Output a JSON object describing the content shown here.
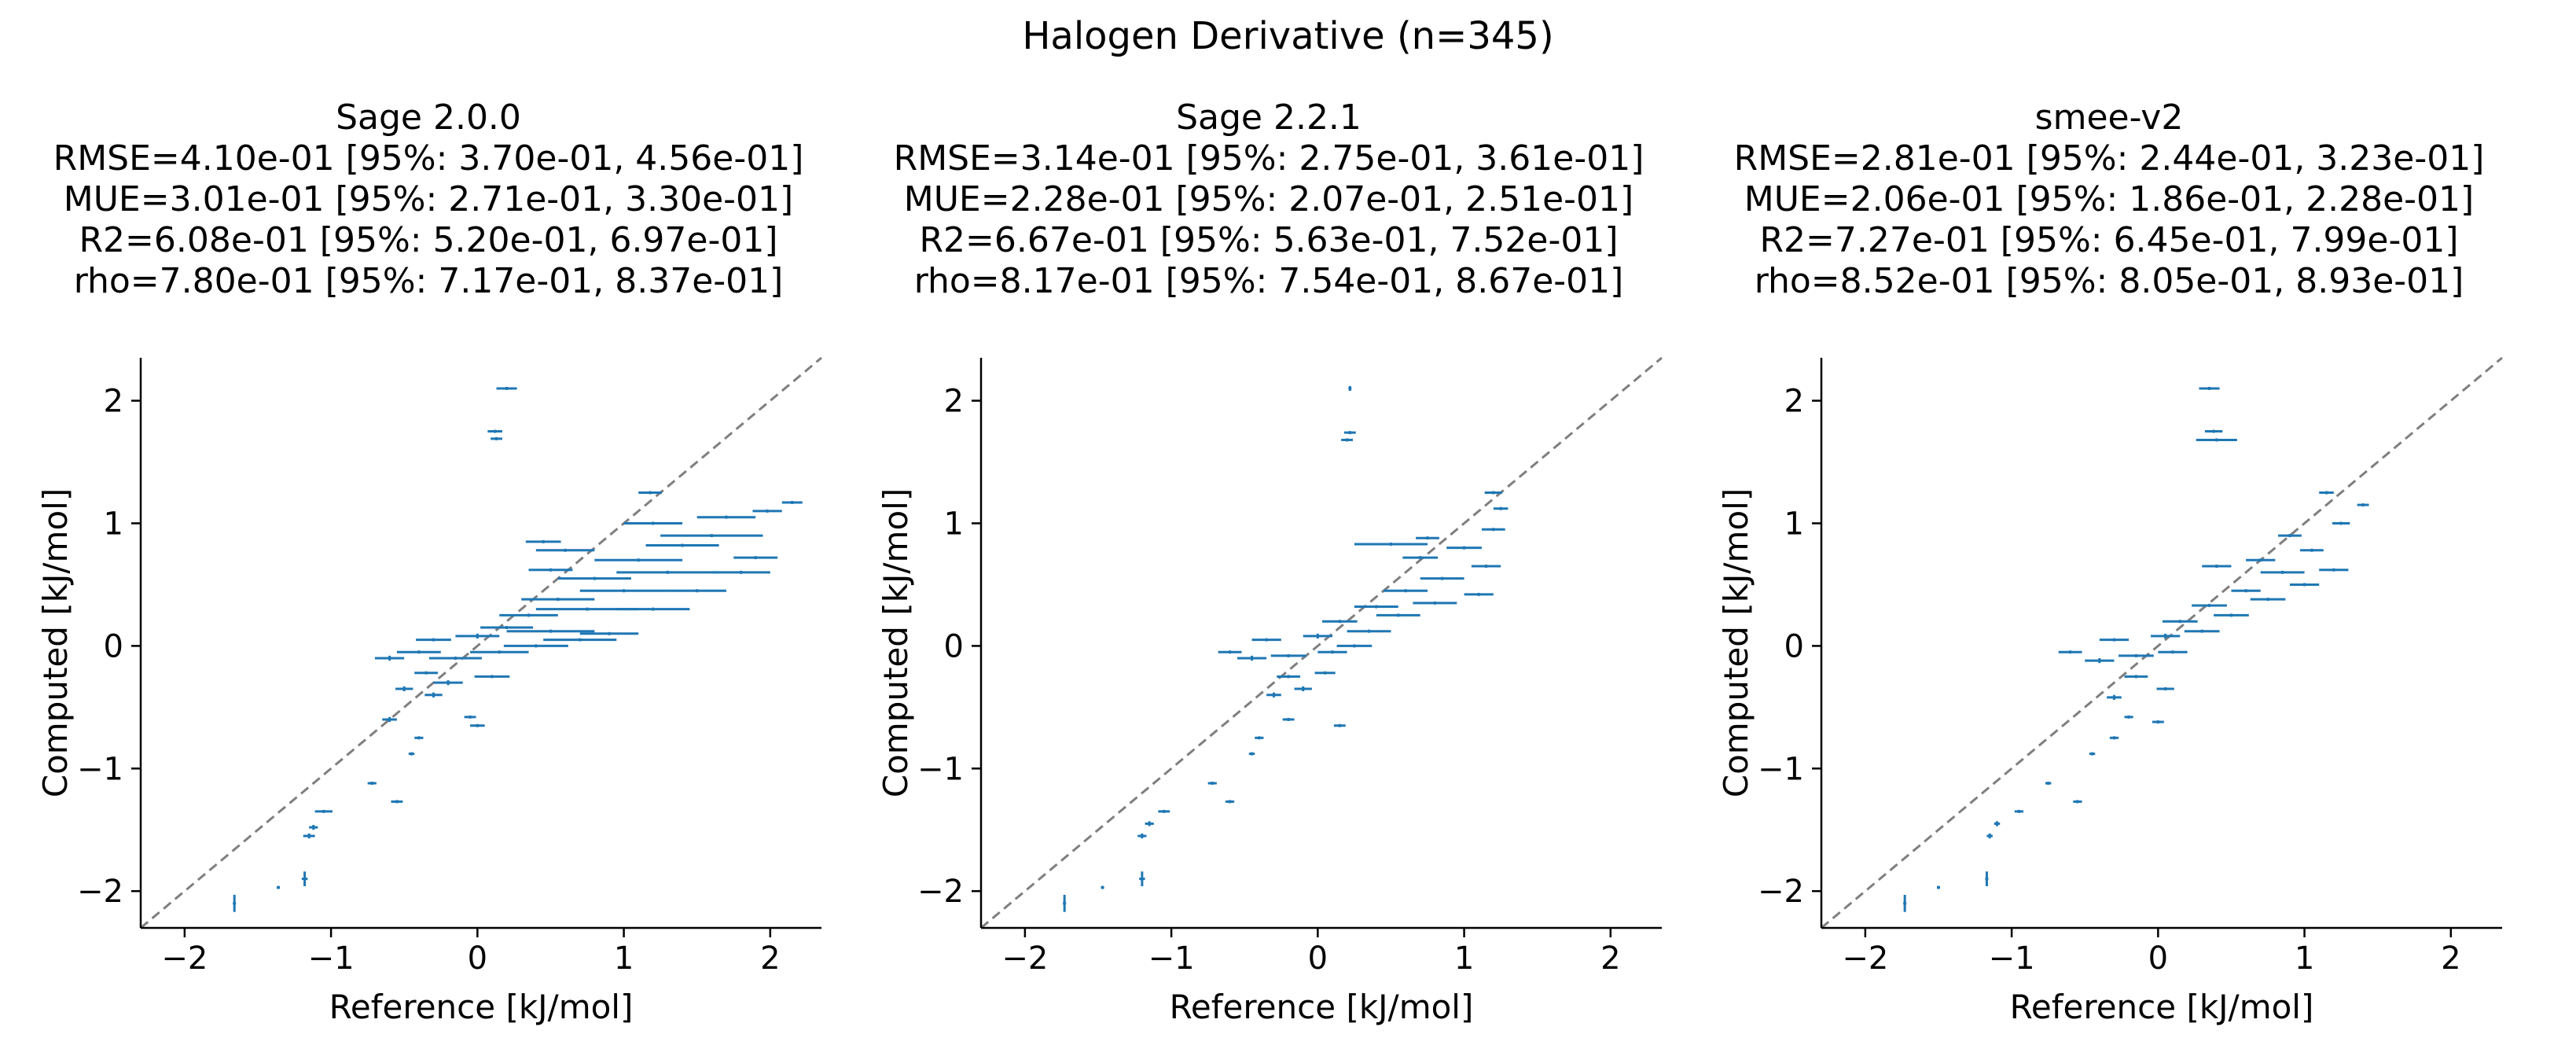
{
  "figure": {
    "suptitle": "Halogen Derivative (n=345)"
  },
  "chart_data": [
    {
      "type": "scatter",
      "title": "Sage 2.0.0",
      "stats": [
        "RMSE=4.10e-01 [95%: 3.70e-01, 4.56e-01]",
        "MUE=3.01e-01 [95%: 2.71e-01, 3.30e-01]",
        "R2=6.08e-01 [95%: 5.20e-01, 6.97e-01]",
        "rho=7.80e-01 [95%: 7.17e-01, 8.37e-01]"
      ],
      "xlabel": "Reference [kJ/mol]",
      "ylabel": "Computed [kJ/mol]",
      "xlim": [
        -2.3,
        2.35
      ],
      "ylim": [
        -2.3,
        2.35
      ],
      "xticks": [
        -2,
        -1,
        0,
        1,
        2
      ],
      "yticks": [
        -2,
        -1,
        0,
        1,
        2
      ],
      "xticklabels": [
        "−2",
        "−1",
        "0",
        "1",
        "2"
      ],
      "yticklabels": [
        "−2",
        "−1",
        "0",
        "1",
        "2"
      ],
      "grid": false,
      "diagonal": true,
      "colors": {
        "points": "#1f77b4",
        "diagonal": "#7f7f7f"
      },
      "points": [
        {
          "x": -1.66,
          "y": -2.1,
          "xerr": 0.01,
          "yerr": 0.07
        },
        {
          "x": -1.36,
          "y": -1.97,
          "xerr": 0.01,
          "yerr": 0.01
        },
        {
          "x": -1.18,
          "y": -1.9,
          "xerr": 0.02,
          "yerr": 0.06
        },
        {
          "x": -1.15,
          "y": -1.55,
          "xerr": 0.04,
          "yerr": 0.02
        },
        {
          "x": -1.12,
          "y": -1.48,
          "xerr": 0.03,
          "yerr": 0.02
        },
        {
          "x": -1.05,
          "y": -1.35,
          "xerr": 0.06,
          "yerr": 0.01
        },
        {
          "x": -0.55,
          "y": -1.27,
          "xerr": 0.04,
          "yerr": 0.01
        },
        {
          "x": -0.72,
          "y": -1.12,
          "xerr": 0.03,
          "yerr": 0.01
        },
        {
          "x": -0.45,
          "y": -0.88,
          "xerr": 0.02,
          "yerr": 0.01
        },
        {
          "x": -0.4,
          "y": -0.75,
          "xerr": 0.03,
          "yerr": 0.01
        },
        {
          "x": -0.6,
          "y": -0.6,
          "xerr": 0.05,
          "yerr": 0.02
        },
        {
          "x": 0.0,
          "y": -0.65,
          "xerr": 0.05,
          "yerr": 0.01
        },
        {
          "x": -0.05,
          "y": -0.58,
          "xerr": 0.04,
          "yerr": 0.01
        },
        {
          "x": -0.3,
          "y": -0.4,
          "xerr": 0.06,
          "yerr": 0.02
        },
        {
          "x": -0.5,
          "y": -0.35,
          "xerr": 0.06,
          "yerr": 0.02
        },
        {
          "x": -0.2,
          "y": -0.3,
          "xerr": 0.1,
          "yerr": 0.02
        },
        {
          "x": -0.35,
          "y": -0.22,
          "xerr": 0.08,
          "yerr": 0.01
        },
        {
          "x": 0.1,
          "y": -0.25,
          "xerr": 0.12,
          "yerr": 0.01
        },
        {
          "x": -0.6,
          "y": -0.1,
          "xerr": 0.1,
          "yerr": 0.02
        },
        {
          "x": -0.4,
          "y": -0.05,
          "xerr": 0.15,
          "yerr": 0.01
        },
        {
          "x": -0.15,
          "y": -0.1,
          "xerr": 0.18,
          "yerr": 0.01
        },
        {
          "x": 0.15,
          "y": -0.05,
          "xerr": 0.2,
          "yerr": 0.01
        },
        {
          "x": 0.4,
          "y": 0.0,
          "xerr": 0.22,
          "yerr": 0.01
        },
        {
          "x": 0.7,
          "y": 0.05,
          "xerr": 0.25,
          "yerr": 0.01
        },
        {
          "x": -0.3,
          "y": 0.05,
          "xerr": 0.12,
          "yerr": 0.01
        },
        {
          "x": 0.0,
          "y": 0.08,
          "xerr": 0.15,
          "yerr": 0.02
        },
        {
          "x": 0.5,
          "y": 0.12,
          "xerr": 0.3,
          "yerr": 0.01
        },
        {
          "x": 0.9,
          "y": 0.1,
          "xerr": 0.2,
          "yerr": 0.01
        },
        {
          "x": 0.2,
          "y": 0.15,
          "xerr": 0.18,
          "yerr": 0.01
        },
        {
          "x": 0.35,
          "y": 0.25,
          "xerr": 0.2,
          "yerr": 0.01
        },
        {
          "x": 0.75,
          "y": 0.3,
          "xerr": 0.35,
          "yerr": 0.01
        },
        {
          "x": 1.2,
          "y": 0.3,
          "xerr": 0.25,
          "yerr": 0.01
        },
        {
          "x": 0.55,
          "y": 0.38,
          "xerr": 0.25,
          "yerr": 0.01
        },
        {
          "x": 1.0,
          "y": 0.45,
          "xerr": 0.3,
          "yerr": 0.01
        },
        {
          "x": 1.5,
          "y": 0.45,
          "xerr": 0.2,
          "yerr": 0.01
        },
        {
          "x": 0.8,
          "y": 0.55,
          "xerr": 0.25,
          "yerr": 0.01
        },
        {
          "x": 1.3,
          "y": 0.6,
          "xerr": 0.35,
          "yerr": 0.01
        },
        {
          "x": 1.8,
          "y": 0.6,
          "xerr": 0.2,
          "yerr": 0.01
        },
        {
          "x": 0.5,
          "y": 0.62,
          "xerr": 0.15,
          "yerr": 0.01
        },
        {
          "x": 1.1,
          "y": 0.7,
          "xerr": 0.3,
          "yerr": 0.01
        },
        {
          "x": 1.9,
          "y": 0.72,
          "xerr": 0.15,
          "yerr": 0.01
        },
        {
          "x": 0.6,
          "y": 0.78,
          "xerr": 0.2,
          "yerr": 0.01
        },
        {
          "x": 1.4,
          "y": 0.82,
          "xerr": 0.25,
          "yerr": 0.01
        },
        {
          "x": 0.45,
          "y": 0.85,
          "xerr": 0.12,
          "yerr": 0.01
        },
        {
          "x": 1.6,
          "y": 0.9,
          "xerr": 0.35,
          "yerr": 0.01
        },
        {
          "x": 1.2,
          "y": 1.0,
          "xerr": 0.2,
          "yerr": 0.01
        },
        {
          "x": 1.7,
          "y": 1.05,
          "xerr": 0.2,
          "yerr": 0.01
        },
        {
          "x": 1.98,
          "y": 1.1,
          "xerr": 0.1,
          "yerr": 0.01
        },
        {
          "x": 2.15,
          "y": 1.17,
          "xerr": 0.07,
          "yerr": 0.01
        },
        {
          "x": 1.18,
          "y": 1.25,
          "xerr": 0.08,
          "yerr": 0.01
        },
        {
          "x": 0.2,
          "y": 2.1,
          "xerr": 0.07,
          "yerr": 0.01
        },
        {
          "x": 0.12,
          "y": 1.75,
          "xerr": 0.05,
          "yerr": 0.01
        },
        {
          "x": 0.13,
          "y": 1.69,
          "xerr": 0.04,
          "yerr": 0.01
        }
      ]
    },
    {
      "type": "scatter",
      "title": "Sage 2.2.1",
      "stats": [
        "RMSE=3.14e-01 [95%: 2.75e-01, 3.61e-01]",
        "MUE=2.28e-01 [95%: 2.07e-01, 2.51e-01]",
        "R2=6.67e-01 [95%: 5.63e-01, 7.52e-01]",
        "rho=8.17e-01 [95%: 7.54e-01, 8.67e-01]"
      ],
      "xlabel": "Reference [kJ/mol]",
      "ylabel": "Computed [kJ/mol]",
      "xlim": [
        -2.3,
        2.35
      ],
      "ylim": [
        -2.3,
        2.35
      ],
      "xticks": [
        -2,
        -1,
        0,
        1,
        2
      ],
      "yticks": [
        -2,
        -1,
        0,
        1,
        2
      ],
      "xticklabels": [
        "−2",
        "−1",
        "0",
        "1",
        "2"
      ],
      "yticklabels": [
        "−2",
        "−1",
        "0",
        "1",
        "2"
      ],
      "grid": false,
      "diagonal": true,
      "colors": {
        "points": "#1f77b4",
        "diagonal": "#7f7f7f"
      },
      "points": [
        {
          "x": -1.73,
          "y": -2.1,
          "xerr": 0.01,
          "yerr": 0.07
        },
        {
          "x": -1.47,
          "y": -1.97,
          "xerr": 0.01,
          "yerr": 0.01
        },
        {
          "x": -1.2,
          "y": -1.9,
          "xerr": 0.02,
          "yerr": 0.06
        },
        {
          "x": -1.2,
          "y": -1.55,
          "xerr": 0.03,
          "yerr": 0.02
        },
        {
          "x": -1.15,
          "y": -1.45,
          "xerr": 0.03,
          "yerr": 0.02
        },
        {
          "x": -1.05,
          "y": -1.35,
          "xerr": 0.04,
          "yerr": 0.01
        },
        {
          "x": -0.6,
          "y": -1.27,
          "xerr": 0.03,
          "yerr": 0.01
        },
        {
          "x": -0.72,
          "y": -1.12,
          "xerr": 0.03,
          "yerr": 0.01
        },
        {
          "x": -0.45,
          "y": -0.88,
          "xerr": 0.02,
          "yerr": 0.01
        },
        {
          "x": -0.4,
          "y": -0.75,
          "xerr": 0.03,
          "yerr": 0.01
        },
        {
          "x": -0.2,
          "y": -0.6,
          "xerr": 0.04,
          "yerr": 0.01
        },
        {
          "x": 0.15,
          "y": -0.65,
          "xerr": 0.04,
          "yerr": 0.01
        },
        {
          "x": -0.3,
          "y": -0.4,
          "xerr": 0.05,
          "yerr": 0.02
        },
        {
          "x": -0.1,
          "y": -0.35,
          "xerr": 0.06,
          "yerr": 0.02
        },
        {
          "x": -0.2,
          "y": -0.25,
          "xerr": 0.08,
          "yerr": 0.01
        },
        {
          "x": 0.05,
          "y": -0.22,
          "xerr": 0.07,
          "yerr": 0.01
        },
        {
          "x": -0.45,
          "y": -0.1,
          "xerr": 0.1,
          "yerr": 0.02
        },
        {
          "x": -0.6,
          "y": -0.05,
          "xerr": 0.08,
          "yerr": 0.01
        },
        {
          "x": -0.2,
          "y": -0.08,
          "xerr": 0.12,
          "yerr": 0.01
        },
        {
          "x": 0.1,
          "y": -0.05,
          "xerr": 0.1,
          "yerr": 0.01
        },
        {
          "x": 0.25,
          "y": 0.0,
          "xerr": 0.12,
          "yerr": 0.01
        },
        {
          "x": -0.35,
          "y": 0.05,
          "xerr": 0.1,
          "yerr": 0.01
        },
        {
          "x": 0.0,
          "y": 0.08,
          "xerr": 0.1,
          "yerr": 0.02
        },
        {
          "x": 0.35,
          "y": 0.12,
          "xerr": 0.15,
          "yerr": 0.01
        },
        {
          "x": 0.15,
          "y": 0.2,
          "xerr": 0.12,
          "yerr": 0.01
        },
        {
          "x": 0.55,
          "y": 0.25,
          "xerr": 0.15,
          "yerr": 0.01
        },
        {
          "x": 0.4,
          "y": 0.32,
          "xerr": 0.15,
          "yerr": 0.01
        },
        {
          "x": 0.8,
          "y": 0.35,
          "xerr": 0.15,
          "yerr": 0.01
        },
        {
          "x": 0.6,
          "y": 0.45,
          "xerr": 0.15,
          "yerr": 0.01
        },
        {
          "x": 1.1,
          "y": 0.42,
          "xerr": 0.1,
          "yerr": 0.01
        },
        {
          "x": 0.85,
          "y": 0.55,
          "xerr": 0.15,
          "yerr": 0.01
        },
        {
          "x": 1.15,
          "y": 0.65,
          "xerr": 0.1,
          "yerr": 0.01
        },
        {
          "x": 0.7,
          "y": 0.72,
          "xerr": 0.12,
          "yerr": 0.01
        },
        {
          "x": 1.0,
          "y": 0.8,
          "xerr": 0.12,
          "yerr": 0.01
        },
        {
          "x": 0.5,
          "y": 0.83,
          "xerr": 0.25,
          "yerr": 0.01
        },
        {
          "x": 0.75,
          "y": 0.88,
          "xerr": 0.08,
          "yerr": 0.01
        },
        {
          "x": 1.2,
          "y": 0.95,
          "xerr": 0.08,
          "yerr": 0.01
        },
        {
          "x": 1.25,
          "y": 1.12,
          "xerr": 0.05,
          "yerr": 0.01
        },
        {
          "x": 1.2,
          "y": 1.25,
          "xerr": 0.06,
          "yerr": 0.01
        },
        {
          "x": 0.22,
          "y": 2.1,
          "xerr": 0.01,
          "yerr": 0.02
        },
        {
          "x": 0.22,
          "y": 1.74,
          "xerr": 0.04,
          "yerr": 0.01
        },
        {
          "x": 0.2,
          "y": 1.68,
          "xerr": 0.04,
          "yerr": 0.01
        }
      ]
    },
    {
      "type": "scatter",
      "title": "smee-v2",
      "stats": [
        "RMSE=2.81e-01 [95%: 2.44e-01, 3.23e-01]",
        "MUE=2.06e-01 [95%: 1.86e-01, 2.28e-01]",
        "R2=7.27e-01 [95%: 6.45e-01, 7.99e-01]",
        "rho=8.52e-01 [95%: 8.05e-01, 8.93e-01]"
      ],
      "xlabel": "Reference [kJ/mol]",
      "ylabel": "Computed [kJ/mol]",
      "xlim": [
        -2.3,
        2.35
      ],
      "ylim": [
        -2.3,
        2.35
      ],
      "xticks": [
        -2,
        -1,
        0,
        1,
        2
      ],
      "yticks": [
        -2,
        -1,
        0,
        1,
        2
      ],
      "xticklabels": [
        "−2",
        "−1",
        "0",
        "1",
        "2"
      ],
      "yticklabels": [
        "−2",
        "−1",
        "0",
        "1",
        "2"
      ],
      "grid": false,
      "diagonal": true,
      "colors": {
        "points": "#1f77b4",
        "diagonal": "#7f7f7f"
      },
      "points": [
        {
          "x": -1.73,
          "y": -2.1,
          "xerr": 0.01,
          "yerr": 0.07
        },
        {
          "x": -1.5,
          "y": -1.97,
          "xerr": 0.01,
          "yerr": 0.01
        },
        {
          "x": -1.17,
          "y": -1.9,
          "xerr": 0.01,
          "yerr": 0.06
        },
        {
          "x": -1.15,
          "y": -1.55,
          "xerr": 0.02,
          "yerr": 0.02
        },
        {
          "x": -1.1,
          "y": -1.45,
          "xerr": 0.02,
          "yerr": 0.02
        },
        {
          "x": -0.95,
          "y": -1.35,
          "xerr": 0.03,
          "yerr": 0.01
        },
        {
          "x": -0.55,
          "y": -1.27,
          "xerr": 0.03,
          "yerr": 0.01
        },
        {
          "x": -0.75,
          "y": -1.12,
          "xerr": 0.02,
          "yerr": 0.01
        },
        {
          "x": -0.45,
          "y": -0.88,
          "xerr": 0.02,
          "yerr": 0.01
        },
        {
          "x": -0.3,
          "y": -0.75,
          "xerr": 0.03,
          "yerr": 0.01
        },
        {
          "x": -0.2,
          "y": -0.58,
          "xerr": 0.03,
          "yerr": 0.01
        },
        {
          "x": 0.0,
          "y": -0.62,
          "xerr": 0.04,
          "yerr": 0.01
        },
        {
          "x": -0.3,
          "y": -0.42,
          "xerr": 0.05,
          "yerr": 0.02
        },
        {
          "x": 0.05,
          "y": -0.35,
          "xerr": 0.06,
          "yerr": 0.01
        },
        {
          "x": -0.15,
          "y": -0.25,
          "xerr": 0.08,
          "yerr": 0.01
        },
        {
          "x": -0.4,
          "y": -0.12,
          "xerr": 0.1,
          "yerr": 0.02
        },
        {
          "x": -0.6,
          "y": -0.05,
          "xerr": 0.08,
          "yerr": 0.01
        },
        {
          "x": -0.15,
          "y": -0.08,
          "xerr": 0.12,
          "yerr": 0.01
        },
        {
          "x": 0.1,
          "y": -0.05,
          "xerr": 0.1,
          "yerr": 0.01
        },
        {
          "x": -0.3,
          "y": 0.05,
          "xerr": 0.1,
          "yerr": 0.01
        },
        {
          "x": 0.05,
          "y": 0.08,
          "xerr": 0.1,
          "yerr": 0.02
        },
        {
          "x": 0.3,
          "y": 0.12,
          "xerr": 0.12,
          "yerr": 0.01
        },
        {
          "x": 0.15,
          "y": 0.2,
          "xerr": 0.12,
          "yerr": 0.01
        },
        {
          "x": 0.5,
          "y": 0.25,
          "xerr": 0.12,
          "yerr": 0.01
        },
        {
          "x": 0.35,
          "y": 0.33,
          "xerr": 0.12,
          "yerr": 0.01
        },
        {
          "x": 0.75,
          "y": 0.38,
          "xerr": 0.12,
          "yerr": 0.01
        },
        {
          "x": 0.6,
          "y": 0.45,
          "xerr": 0.1,
          "yerr": 0.01
        },
        {
          "x": 1.0,
          "y": 0.5,
          "xerr": 0.1,
          "yerr": 0.01
        },
        {
          "x": 0.85,
          "y": 0.6,
          "xerr": 0.15,
          "yerr": 0.01
        },
        {
          "x": 1.2,
          "y": 0.62,
          "xerr": 0.1,
          "yerr": 0.01
        },
        {
          "x": 0.7,
          "y": 0.7,
          "xerr": 0.1,
          "yerr": 0.01
        },
        {
          "x": 1.05,
          "y": 0.78,
          "xerr": 0.08,
          "yerr": 0.01
        },
        {
          "x": 0.4,
          "y": 0.65,
          "xerr": 0.1,
          "yerr": 0.01
        },
        {
          "x": 0.9,
          "y": 0.9,
          "xerr": 0.08,
          "yerr": 0.01
        },
        {
          "x": 1.25,
          "y": 1.0,
          "xerr": 0.06,
          "yerr": 0.01
        },
        {
          "x": 1.4,
          "y": 1.15,
          "xerr": 0.04,
          "yerr": 0.01
        },
        {
          "x": 1.15,
          "y": 1.25,
          "xerr": 0.05,
          "yerr": 0.01
        },
        {
          "x": 0.35,
          "y": 2.1,
          "xerr": 0.07,
          "yerr": 0.01
        },
        {
          "x": 0.38,
          "y": 1.75,
          "xerr": 0.06,
          "yerr": 0.01
        },
        {
          "x": 0.4,
          "y": 1.68,
          "xerr": 0.14,
          "yerr": 0.01
        }
      ]
    }
  ]
}
